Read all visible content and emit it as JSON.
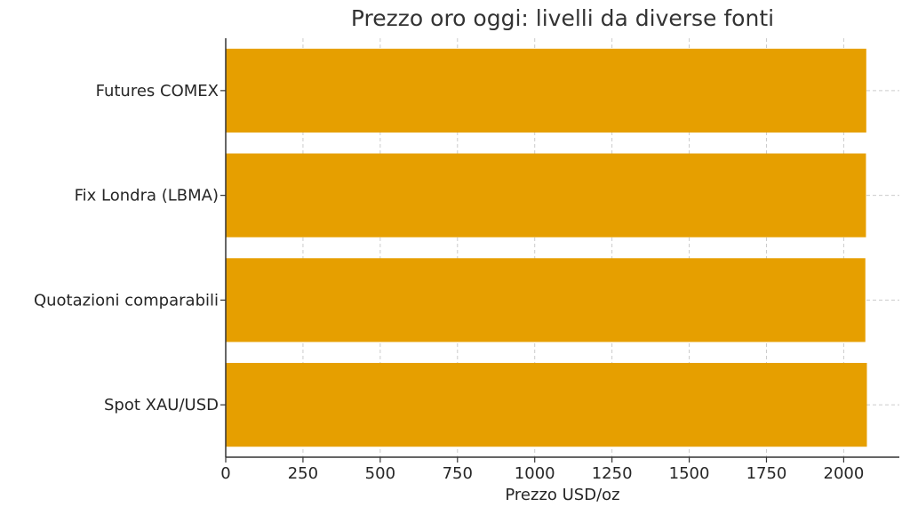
{
  "chart_data": {
    "type": "bar",
    "orientation": "horizontal",
    "title": "Prezzo oro oggi: livelli da diverse fonti",
    "xlabel": "Prezzo USD/oz",
    "ylabel": "",
    "categories": [
      "Spot XAU/USD",
      "Quotazioni comparabili",
      "Fix Londra (LBMA)",
      "Futures COMEX"
    ],
    "values": [
      2075,
      2070,
      2072,
      2073
    ],
    "xlim": [
      0,
      2180
    ],
    "xticks": [
      0,
      250,
      500,
      750,
      1000,
      1250,
      1500,
      1750,
      2000
    ],
    "grid": true,
    "bar_color": "#E69F00",
    "grid_color": "#cccccc",
    "axis_color": "#333333"
  }
}
